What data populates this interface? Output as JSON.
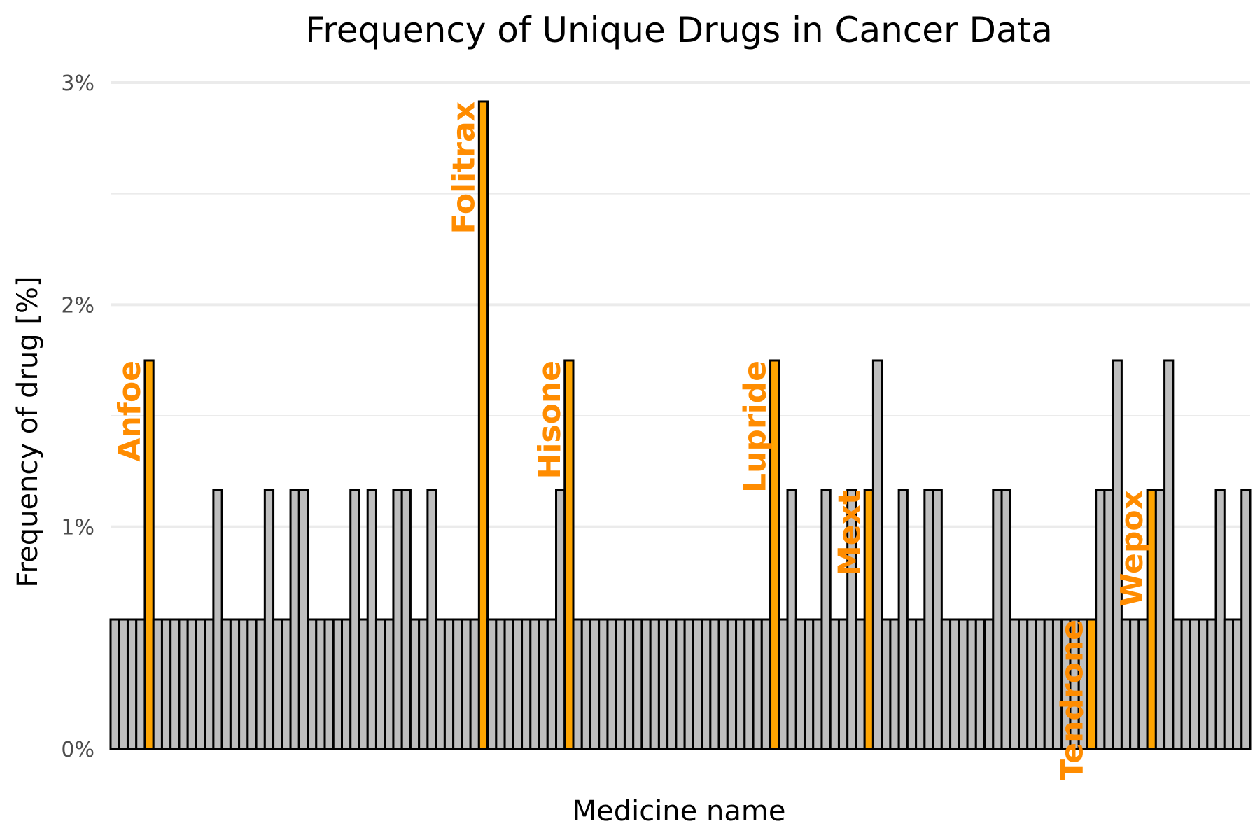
{
  "chart_data": {
    "type": "bar",
    "title": "Frequency of Unique Drugs in Cancer Data",
    "xlabel": "Medicine name",
    "ylabel": "Frequency of drug [%]",
    "ylim": [
      0,
      3
    ],
    "yticks": [
      0,
      1,
      2,
      3
    ],
    "ytick_labels": [
      "0%",
      "1%",
      "2%",
      "3%"
    ],
    "grid": true,
    "legend": "none",
    "bar_count": 131,
    "values": [
      0.583,
      0.583,
      0.583,
      0.583,
      1.749,
      0.583,
      0.583,
      0.583,
      0.583,
      0.583,
      0.583,
      0.583,
      1.166,
      0.583,
      0.583,
      0.583,
      0.583,
      0.583,
      1.166,
      0.583,
      0.583,
      1.166,
      1.166,
      0.583,
      0.583,
      0.583,
      0.583,
      0.583,
      1.166,
      0.583,
      1.166,
      0.583,
      0.583,
      1.166,
      1.166,
      0.583,
      0.583,
      1.166,
      0.583,
      0.583,
      0.583,
      0.583,
      0.583,
      2.915,
      0.583,
      0.583,
      0.583,
      0.583,
      0.583,
      0.583,
      0.583,
      0.583,
      1.166,
      1.749,
      0.583,
      0.583,
      0.583,
      0.583,
      0.583,
      0.583,
      0.583,
      0.583,
      0.583,
      0.583,
      0.583,
      0.583,
      0.583,
      0.583,
      0.583,
      0.583,
      0.583,
      0.583,
      0.583,
      0.583,
      0.583,
      0.583,
      0.583,
      1.749,
      0.583,
      1.166,
      0.583,
      0.583,
      0.583,
      1.166,
      0.583,
      0.583,
      1.166,
      0.583,
      1.166,
      1.749,
      0.583,
      0.583,
      1.166,
      0.583,
      0.583,
      1.166,
      1.166,
      0.583,
      0.583,
      0.583,
      0.583,
      0.583,
      0.583,
      1.166,
      1.166,
      0.583,
      0.583,
      0.583,
      0.583,
      0.583,
      0.583,
      0.583,
      0.583,
      0.583,
      0.583,
      1.166,
      1.166,
      1.749,
      0.583,
      0.583,
      0.583,
      1.166,
      1.166,
      1.749,
      0.583,
      0.583,
      0.583,
      0.583,
      0.583,
      1.166,
      0.583,
      0.583,
      1.166
    ],
    "highlighted": [
      {
        "index": 4,
        "label": "Anfoe"
      },
      {
        "index": 43,
        "label": "Folitrax"
      },
      {
        "index": 53,
        "label": "Hisone"
      },
      {
        "index": 77,
        "label": "Lupride"
      },
      {
        "index": 88,
        "label": "Mext"
      },
      {
        "index": 114,
        "label": "Tendrone"
      },
      {
        "index": 121,
        "label": "Wepox"
      }
    ],
    "colors": {
      "bar_fill": "#bebebe",
      "highlight_fill": "#ffa500",
      "bar_stroke": "#000000",
      "label_color": "#ff8c00",
      "grid_color": "#ebebeb"
    }
  }
}
